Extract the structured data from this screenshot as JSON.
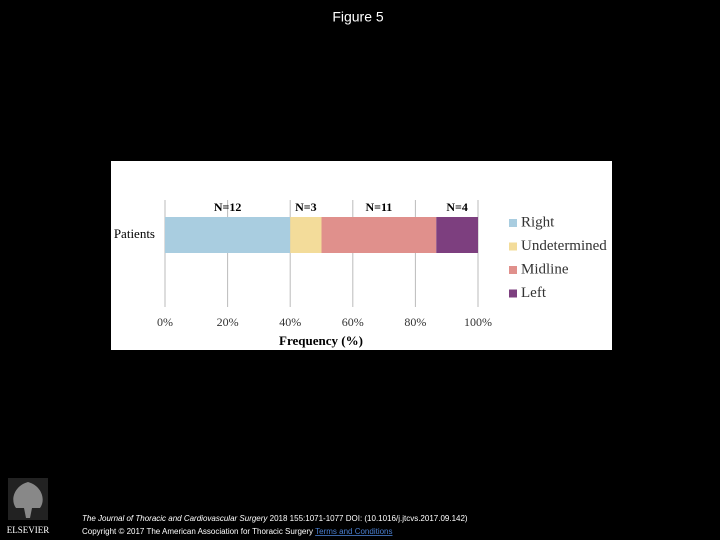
{
  "header": {
    "title": "Figure 5"
  },
  "chart_data": {
    "type": "stacked-barh",
    "categories": [
      "Patients"
    ],
    "series": [
      {
        "name": "Right",
        "color": "#a9cde0",
        "values": [
          40
        ],
        "annotation": "N=12"
      },
      {
        "name": "Undetermined",
        "color": "#f3dc9a",
        "values": [
          10
        ],
        "annotation": "N=3"
      },
      {
        "name": "Midline",
        "color": "#e0908c",
        "values": [
          36.67
        ],
        "annotation": "N=11"
      },
      {
        "name": "Left",
        "color": "#7d3f7f",
        "values": [
          13.33
        ],
        "annotation": "N=4"
      }
    ],
    "xlabel": "Frequency (%)",
    "xlim": [
      0,
      100
    ],
    "xticks": [
      {
        "value": 0,
        "label": "0%"
      },
      {
        "value": 20,
        "label": "20%"
      },
      {
        "value": 40,
        "label": "40%"
      },
      {
        "value": 60,
        "label": "60%"
      },
      {
        "value": 80,
        "label": "80%"
      },
      {
        "value": 100,
        "label": "100%"
      }
    ],
    "grid": true,
    "legend": "right"
  },
  "footer": {
    "publisher": "ELSEVIER",
    "journal": "The Journal of Thoracic and Cardiovascular Surgery",
    "citation": "2018 155:1071-1077 DOI: (10.1016/j.jtcvs.2017.09.142)",
    "copyright": "Copyright © 2017 The American Association for Thoracic Surgery",
    "link": "Terms and Conditions"
  }
}
